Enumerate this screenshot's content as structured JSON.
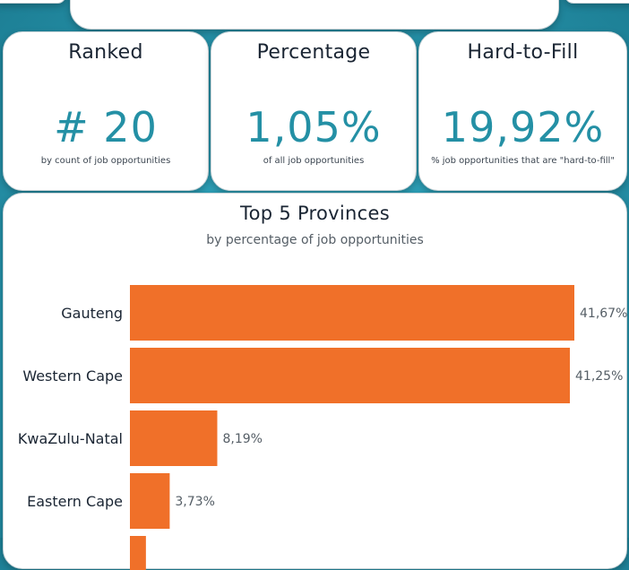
{
  "kpis": {
    "ranked": {
      "title": "Ranked",
      "value": "# 20",
      "caption": "by count of job opportunities"
    },
    "percentage": {
      "title": "Percentage",
      "value": "1,05%",
      "caption": "of all job opportunities"
    },
    "hard_to_fill": {
      "title": "Hard-to-Fill",
      "value": "19,92%",
      "caption": "% job opportunities that are \"hard-to-fill\""
    }
  },
  "colors": {
    "bar": "#f07029",
    "kpi_value": "#2490a5",
    "background": "#2a9bb3"
  },
  "chart_data": {
    "type": "bar",
    "orientation": "horizontal",
    "title": "Top 5 Provinces",
    "subtitle": "by percentage of job opportunities",
    "categories": [
      "Gauteng",
      "Western Cape",
      "KwaZulu-Natal",
      "Eastern Cape",
      ""
    ],
    "values": [
      41.67,
      41.25,
      8.19,
      3.73,
      1.5
    ],
    "value_labels": [
      "41,67%",
      "41,25%",
      "8,19%",
      "3,73%",
      ""
    ],
    "xlim": [
      0,
      41.67
    ],
    "grid": false,
    "legend": "none"
  }
}
